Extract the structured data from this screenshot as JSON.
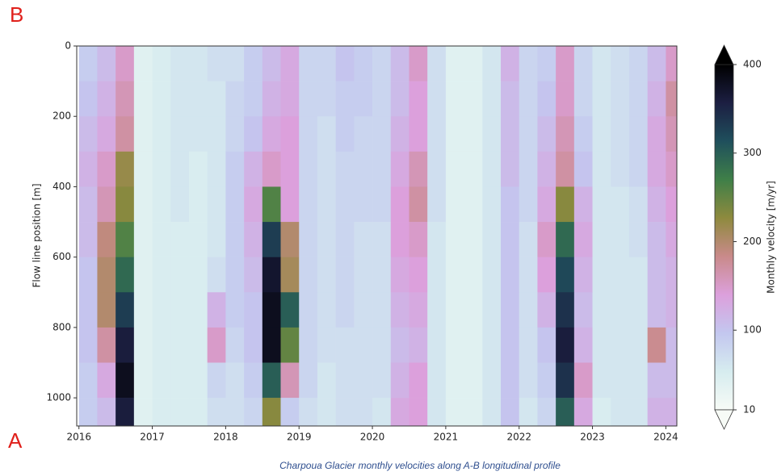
{
  "chart_data": {
    "type": "heatmap",
    "panel_labels": [
      "B",
      "A"
    ],
    "ylabel": "Flow line position [m]",
    "caption": "Charpoua Glacier monthly velocities along A-B longitudinal profile",
    "colorbar_label": "Monthly velocity [m/yr]",
    "x_edges": [
      2016,
      2016.25,
      2016.5,
      2016.75,
      2017,
      2017.25,
      2017.5,
      2017.75,
      2018,
      2018.25,
      2018.5,
      2018.75,
      2019,
      2019.25,
      2019.5,
      2019.75,
      2020,
      2020.25,
      2020.5,
      2020.75,
      2021,
      2021.25,
      2021.5,
      2021.75,
      2022,
      2022.25,
      2022.5,
      2022.75,
      2023,
      2023.25,
      2023.5,
      2023.75,
      2024,
      2024.15
    ],
    "y_edges": [
      0,
      100,
      200,
      300,
      400,
      500,
      600,
      700,
      800,
      900,
      1000,
      1080
    ],
    "z": [
      [
        90,
        110,
        150,
        40,
        50,
        60,
        60,
        70,
        70,
        90,
        110,
        130,
        80,
        80,
        100,
        90,
        80,
        110,
        150,
        70,
        40,
        40,
        60,
        120,
        80,
        90,
        150,
        80,
        60,
        70,
        80,
        110,
        150
      ],
      [
        100,
        120,
        160,
        40,
        50,
        60,
        60,
        60,
        80,
        90,
        120,
        130,
        80,
        80,
        90,
        90,
        80,
        110,
        140,
        70,
        40,
        40,
        60,
        110,
        80,
        100,
        150,
        80,
        60,
        70,
        80,
        120,
        170
      ],
      [
        110,
        130,
        170,
        40,
        50,
        60,
        60,
        60,
        80,
        100,
        130,
        140,
        80,
        70,
        90,
        80,
        80,
        120,
        140,
        70,
        40,
        40,
        60,
        110,
        80,
        110,
        160,
        90,
        60,
        70,
        80,
        130,
        160
      ],
      [
        120,
        150,
        220,
        40,
        50,
        60,
        50,
        60,
        90,
        120,
        150,
        140,
        80,
        70,
        80,
        80,
        80,
        130,
        160,
        70,
        40,
        40,
        60,
        110,
        80,
        120,
        170,
        100,
        60,
        70,
        80,
        130,
        150
      ],
      [
        110,
        160,
        230,
        40,
        50,
        60,
        50,
        60,
        90,
        130,
        260,
        140,
        80,
        70,
        80,
        80,
        80,
        140,
        170,
        70,
        40,
        40,
        60,
        100,
        80,
        130,
        230,
        120,
        60,
        60,
        70,
        120,
        140
      ],
      [
        110,
        190,
        260,
        40,
        50,
        50,
        50,
        60,
        90,
        120,
        330,
        200,
        80,
        70,
        80,
        70,
        70,
        140,
        150,
        60,
        40,
        40,
        60,
        100,
        70,
        150,
        290,
        130,
        60,
        60,
        70,
        110,
        130
      ],
      [
        100,
        200,
        290,
        40,
        50,
        50,
        50,
        70,
        90,
        110,
        370,
        210,
        80,
        70,
        80,
        70,
        70,
        130,
        140,
        60,
        40,
        40,
        60,
        100,
        70,
        140,
        320,
        120,
        60,
        60,
        60,
        110,
        120
      ],
      [
        100,
        200,
        330,
        40,
        50,
        50,
        50,
        120,
        90,
        100,
        380,
        300,
        80,
        70,
        80,
        70,
        70,
        120,
        130,
        60,
        40,
        40,
        60,
        100,
        70,
        120,
        340,
        110,
        60,
        60,
        60,
        110,
        120
      ],
      [
        100,
        170,
        360,
        40,
        50,
        50,
        50,
        150,
        80,
        100,
        380,
        250,
        80,
        70,
        70,
        70,
        70,
        110,
        120,
        60,
        40,
        40,
        60,
        100,
        70,
        100,
        360,
        120,
        60,
        60,
        60,
        180,
        110
      ],
      [
        90,
        130,
        380,
        40,
        50,
        50,
        50,
        80,
        70,
        90,
        300,
        160,
        80,
        60,
        70,
        70,
        70,
        120,
        140,
        60,
        40,
        40,
        60,
        100,
        70,
        90,
        340,
        150,
        60,
        60,
        60,
        110,
        110
      ],
      [
        90,
        110,
        360,
        40,
        50,
        50,
        50,
        70,
        70,
        80,
        230,
        90,
        70,
        60,
        70,
        70,
        60,
        130,
        140,
        60,
        40,
        40,
        60,
        100,
        60,
        80,
        300,
        130,
        50,
        60,
        60,
        120,
        120
      ]
    ],
    "xlim": [
      2015.97,
      2024.15
    ],
    "xticks": [
      2016,
      2017,
      2018,
      2019,
      2020,
      2021,
      2022,
      2023,
      2024
    ],
    "ylim": [
      1080,
      0
    ],
    "yticks": [
      0,
      200,
      400,
      600,
      800,
      1000
    ],
    "clim": [
      10,
      400
    ],
    "cticks": [
      10,
      100,
      200,
      300,
      400
    ],
    "colormap": [
      "#f7fbf6",
      "#d6ecef",
      "#c3c7ef",
      "#dca0dc",
      "#c98a8a",
      "#8e8a3e",
      "#3f7f48",
      "#1f4f5c",
      "#1c1f42",
      "#000000"
    ]
  }
}
